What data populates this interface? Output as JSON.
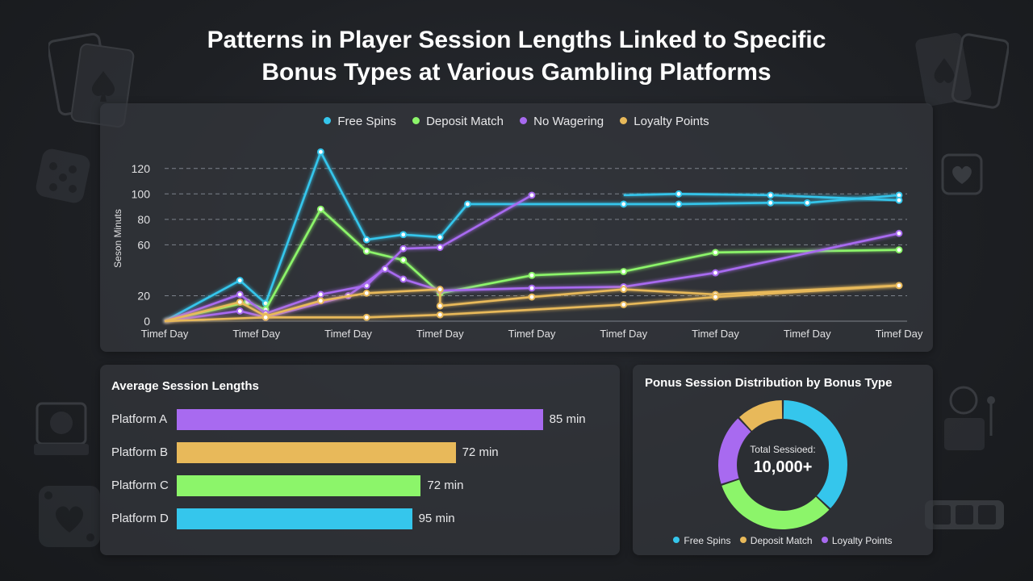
{
  "title_line1": "Patterns in Player Session Lengths Linked to Specific",
  "title_line2": "Bonus Types at Various Gambling Platforms",
  "colors": {
    "free_spins": "#35c6ec",
    "deposit_match": "#8cf56a",
    "no_wagering": "#a86af0",
    "loyalty_points": "#e8b95a"
  },
  "chart_data": [
    {
      "type": "line",
      "ylabel": "Seson Minuts",
      "ylim": [
        0,
        130
      ],
      "y_ticks": [
        0,
        20,
        60,
        80,
        100,
        120
      ],
      "x_tick_labels": [
        "Timef Day",
        "Timef Day",
        "Timef Day",
        "Timef Day",
        "Timef Day",
        "Timef Day",
        "Timef Day",
        "Timef Day",
        "Timef Day"
      ],
      "grid": true,
      "legend_position": "top",
      "series": [
        {
          "name": "Free Spins",
          "color": "#35c6ec",
          "points": [
            [
              0,
              0
            ],
            [
              0.82,
              32
            ],
            [
              1.1,
              14
            ],
            [
              1.7,
              133
            ],
            [
              2.2,
              64
            ],
            [
              2.6,
              68
            ],
            [
              3.0,
              66
            ],
            [
              3.3,
              92
            ],
            [
              5.0,
              92
            ],
            [
              5.6,
              92
            ],
            [
              6.6,
              93
            ],
            [
              7.0,
              93
            ],
            [
              8.0,
              99
            ]
          ]
        },
        {
          "name": "Free Spins",
          "color": "#35c6ec",
          "points": [
            [
              5.0,
              99
            ],
            [
              5.6,
              100
            ],
            [
              6.6,
              99
            ],
            [
              8.0,
              95
            ]
          ]
        },
        {
          "name": "Deposit Match",
          "color": "#8cf56a",
          "points": [
            [
              0,
              0
            ],
            [
              0.9,
              15
            ],
            [
              1.1,
              9
            ],
            [
              1.7,
              88
            ],
            [
              2.2,
              55
            ],
            [
              2.6,
              48
            ],
            [
              3.0,
              22
            ],
            [
              4.0,
              36
            ],
            [
              5.0,
              39
            ],
            [
              6.0,
              54
            ],
            [
              8.0,
              56
            ]
          ]
        },
        {
          "name": "No Wagering",
          "color": "#a86af0",
          "points": [
            [
              0,
              0
            ],
            [
              0.82,
              21
            ],
            [
              1.1,
              6
            ],
            [
              1.7,
              21
            ],
            [
              2.2,
              28
            ],
            [
              2.6,
              57
            ],
            [
              3.0,
              58
            ],
            [
              4.0,
              99
            ]
          ]
        },
        {
          "name": "No Wagering",
          "color": "#a86af0",
          "points": [
            [
              0,
              0
            ],
            [
              0.82,
              8
            ],
            [
              1.1,
              3
            ],
            [
              2.0,
              20
            ],
            [
              2.4,
              41
            ],
            [
              2.6,
              33
            ],
            [
              3.0,
              24
            ],
            [
              4.0,
              26
            ],
            [
              5.0,
              27
            ],
            [
              6.0,
              38
            ],
            [
              8.0,
              69
            ]
          ]
        },
        {
          "name": "Loyalty Points",
          "color": "#e8b95a",
          "points": [
            [
              0,
              0
            ],
            [
              0.82,
              15
            ],
            [
              1.1,
              4
            ],
            [
              1.7,
              16
            ],
            [
              2.2,
              22
            ],
            [
              3.0,
              25
            ],
            [
              3.0,
              12
            ],
            [
              4.0,
              19
            ],
            [
              5.0,
              25
            ],
            [
              6.0,
              21
            ],
            [
              8.0,
              28
            ]
          ]
        },
        {
          "name": "Loyalty Points",
          "color": "#e8b95a",
          "points": [
            [
              0,
              0
            ],
            [
              1.1,
              3
            ],
            [
              2.2,
              3
            ],
            [
              3.0,
              5
            ],
            [
              5.0,
              13
            ],
            [
              6.0,
              19
            ],
            [
              8.0,
              28
            ]
          ]
        }
      ]
    },
    {
      "type": "bar",
      "title": "Average Session Lengths",
      "categories": [
        "Platform A",
        "Platform B",
        "Platform C",
        "Platform D"
      ],
      "values": [
        85,
        72,
        72,
        95
      ],
      "value_labels": [
        "85 min",
        "72 min",
        "72 min",
        "95 min"
      ],
      "bar_scale_fraction": [
        0.84,
        0.64,
        0.56,
        0.54
      ],
      "colors": [
        "#a86af0",
        "#e8b95a",
        "#8cf56a",
        "#35c6ec"
      ]
    },
    {
      "type": "pie",
      "title": "Ponus Session Distribution by Bonus Type",
      "center_label": "Total Sessioed:",
      "center_value": "10,000+",
      "labels": [
        "Free Spins",
        "Deposit Match",
        "Loyalty Points"
      ],
      "segments": [
        {
          "label": "Free Spins",
          "value": 37,
          "color": "#35c6ec"
        },
        {
          "label": "Deposit Match",
          "value": 33,
          "color": "#8cf56a"
        },
        {
          "label": "Loyalty Points",
          "value": 18,
          "color": "#a86af0"
        },
        {
          "label": "Deposit Match",
          "value": 12,
          "color": "#e8b95a"
        }
      ],
      "legend": [
        {
          "label": "Free Spins",
          "color": "#35c6ec"
        },
        {
          "label": "Deposit Match",
          "color": "#e8b95a"
        },
        {
          "label": "Loyalty Points",
          "color": "#a86af0"
        }
      ]
    }
  ]
}
